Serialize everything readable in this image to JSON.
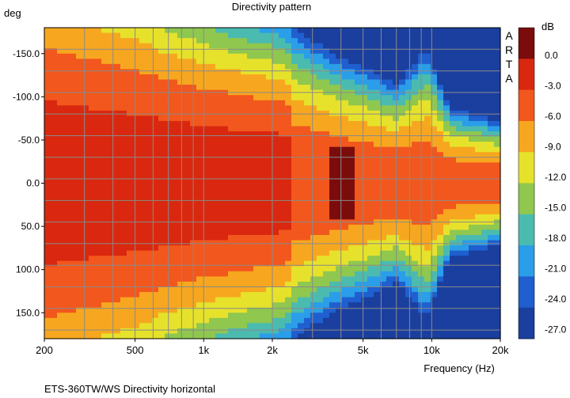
{
  "chart_data": {
    "type": "heatmap",
    "title": "Directivity pattern",
    "xlabel": "Frequency (Hz)",
    "ylabel": "deg",
    "x_scale": "log",
    "xlim": [
      200,
      20000
    ],
    "ylim": [
      180,
      -180
    ],
    "x_ticks": [
      {
        "value": 200,
        "label": "200"
      },
      {
        "value": 500,
        "label": "500"
      },
      {
        "value": 1000,
        "label": "1k"
      },
      {
        "value": 2000,
        "label": "2k"
      },
      {
        "value": 5000,
        "label": "5k"
      },
      {
        "value": 10000,
        "label": "10k"
      },
      {
        "value": 20000,
        "label": "20k"
      }
    ],
    "y_ticks": [
      {
        "value": -150,
        "label": "-150.0"
      },
      {
        "value": -100,
        "label": "-100.0"
      },
      {
        "value": -50,
        "label": "-50.0"
      },
      {
        "value": 0,
        "label": "0.0"
      },
      {
        "value": 50,
        "label": "50.0"
      },
      {
        "value": 100,
        "label": "100.0"
      },
      {
        "value": 150,
        "label": "150.0"
      }
    ],
    "grid": true,
    "colorbar": {
      "unit": "dB",
      "levels": [
        {
          "label": "0.0",
          "color": "#7a0c0c"
        },
        {
          "label": "-3.0",
          "color": "#d9280f"
        },
        {
          "label": "-6.0",
          "color": "#f2571d"
        },
        {
          "label": "-9.0",
          "color": "#f7a71f"
        },
        {
          "label": "-12.0",
          "color": "#e6e22b"
        },
        {
          "label": "-15.0",
          "color": "#8fc74f"
        },
        {
          "label": "-18.0",
          "color": "#4bbbb0"
        },
        {
          "label": "-21.0",
          "color": "#2a9ee8"
        },
        {
          "label": "-24.0",
          "color": "#1f5fcf"
        },
        {
          "label": "-27.0",
          "color": "#1a3f9e"
        }
      ],
      "bottom_color": "#1a3f9e"
    },
    "beamwidth_deg": [
      {
        "freq": 200,
        "half_width": 180
      },
      {
        "freq": 300,
        "half_width": 165
      },
      {
        "freq": 500,
        "half_width": 150
      },
      {
        "freq": 700,
        "half_width": 135
      },
      {
        "freq": 1000,
        "half_width": 125
      },
      {
        "freq": 1500,
        "half_width": 115
      },
      {
        "freq": 2000,
        "half_width": 110
      },
      {
        "freq": 3000,
        "half_width": 95
      },
      {
        "freq": 4000,
        "half_width": 85
      },
      {
        "freq": 5000,
        "half_width": 80
      },
      {
        "freq": 7000,
        "half_width": 70
      },
      {
        "freq": 9500,
        "half_width": 95
      },
      {
        "freq": 12000,
        "half_width": 55
      },
      {
        "freq": 20000,
        "half_width": 45
      }
    ],
    "on_axis_peak": {
      "freq_range": [
        3500,
        4600
      ],
      "angle_range": [
        -40,
        40
      ],
      "level_db": 0
    }
  },
  "watermark": [
    "A",
    "R",
    "T",
    "A"
  ],
  "caption": "ETS-360TW/WS  Directivity horizontal"
}
